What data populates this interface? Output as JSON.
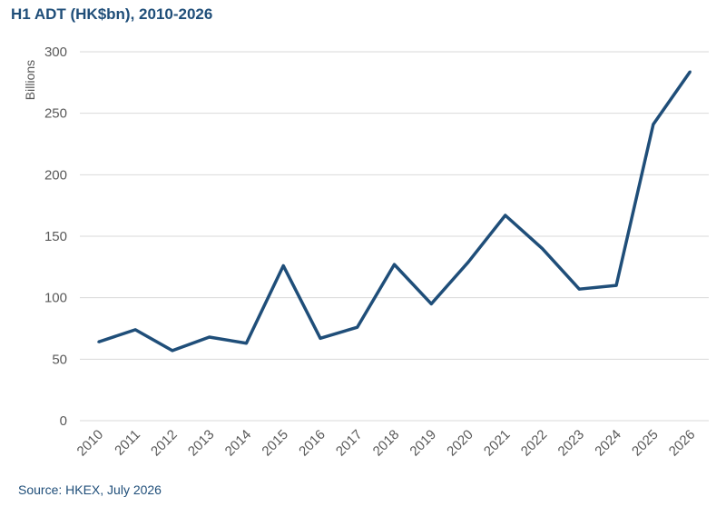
{
  "title": "H1 ADT (HK$bn), 2010-2026",
  "source": "Source: HKEX, July 2026",
  "colors": {
    "line": "#1f4e79",
    "grid": "#d9d9d9",
    "title": "#1f4e79"
  },
  "chart_data": {
    "type": "line",
    "title": "H1 ADT (HK$bn), 2010-2026",
    "xlabel": "",
    "ylabel": "Billions",
    "ylim": [
      0,
      300
    ],
    "yticks": [
      0,
      50,
      100,
      150,
      200,
      250,
      300
    ],
    "grid": true,
    "categories": [
      "2010",
      "2011",
      "2012",
      "2013",
      "2014",
      "2015",
      "2016",
      "2017",
      "2018",
      "2019",
      "2020",
      "2021",
      "2022",
      "2023",
      "2024",
      "2025",
      "2026"
    ],
    "series": [
      {
        "values": [
          64,
          74,
          57,
          68,
          63,
          126,
          67,
          76,
          127,
          95,
          129,
          167,
          140,
          107,
          110,
          241,
          284
        ]
      }
    ]
  }
}
